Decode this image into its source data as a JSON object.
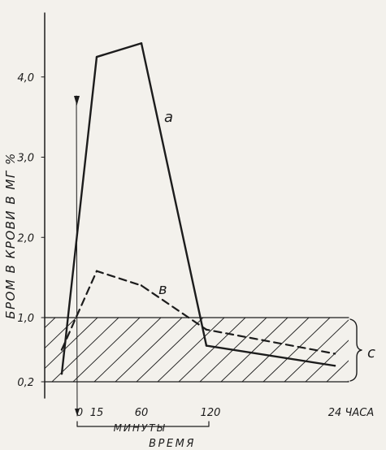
{
  "chart_data": {
    "type": "line",
    "ylabel": "БРОМ В КРОВИ В МГ %",
    "xlabel": "ВРЕМЯ",
    "x_unit_label": "МИНУТЫ",
    "y_ticks": [
      "0,2",
      "1,0",
      "2,0",
      "3,0",
      "4,0"
    ],
    "y_tick_values": [
      0.2,
      1.0,
      2.0,
      3.0,
      4.0
    ],
    "ylim": [
      0,
      4.7
    ],
    "x_ticks": [
      {
        "label": "0",
        "key": "0"
      },
      {
        "label": "15",
        "key": "15"
      },
      {
        "label": "60",
        "key": "60"
      },
      {
        "label": "120",
        "key": "120"
      },
      {
        "label": "24 ЧАСА",
        "key": "24h"
      }
    ],
    "grid": false,
    "series": [
      {
        "name": "а",
        "style": "solid",
        "points": [
          {
            "x": "pre",
            "y": 0.3
          },
          {
            "x": "15",
            "y": 4.25
          },
          {
            "x": "60",
            "y": 4.42
          },
          {
            "x": "120",
            "y": 0.65
          },
          {
            "x": "24h",
            "y": 0.4
          }
        ]
      },
      {
        "name": "в",
        "style": "dashed",
        "points": [
          {
            "x": "pre",
            "y": 0.6
          },
          {
            "x": "15",
            "y": 1.58
          },
          {
            "x": "60",
            "y": 1.4
          },
          {
            "x": "120",
            "y": 0.85
          },
          {
            "x": "24h",
            "y": 0.55
          }
        ]
      }
    ],
    "normal_range": {
      "label": "с",
      "from": 0.2,
      "to": 1.0,
      "hatched": true
    }
  },
  "colors": {
    "ink": "#1c1c1c",
    "paper": "#f3f1ec"
  }
}
